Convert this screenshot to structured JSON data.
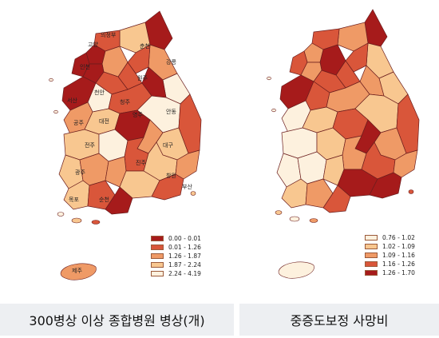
{
  "left_map": {
    "legend": [
      {
        "label": "0.00 - 0.01",
        "color": "#a61b1b"
      },
      {
        "label": "0.01 - 1.26",
        "color": "#d9563a"
      },
      {
        "label": "1.26 - 1.87",
        "color": "#ef9a66"
      },
      {
        "label": "1.87 - 2.24",
        "color": "#f8c790"
      },
      {
        "label": "2.24 - 4.19",
        "color": "#fdf1de"
      }
    ],
    "city_labels": [
      "의정부",
      "고양",
      "인천",
      "춘천",
      "강릉",
      "원주",
      "서산",
      "천안",
      "청주",
      "안동",
      "공주",
      "대전",
      "영주",
      "전주",
      "대구",
      "진주",
      "창원",
      "광주",
      "목포",
      "순천",
      "부산",
      "제주"
    ],
    "caption": "300병상 이상 종합병원 병상(개)"
  },
  "right_map": {
    "legend": [
      {
        "label": "0.76 - 1.02",
        "color": "#fdf1de"
      },
      {
        "label": "1.02 - 1.09",
        "color": "#f8c790"
      },
      {
        "label": "1.09 - 1.16",
        "color": "#ef9a66"
      },
      {
        "label": "1.16 - 1.26",
        "color": "#d9563a"
      },
      {
        "label": "1.26 - 1.70",
        "color": "#a61b1b"
      }
    ],
    "caption": "중증도보정 사망비"
  }
}
